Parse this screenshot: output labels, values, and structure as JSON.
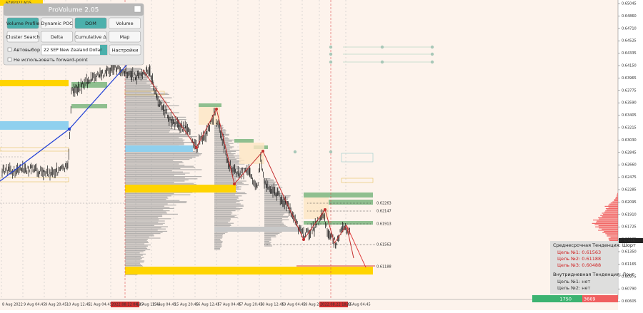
{
  "symbol": "6ZM2022,M15",
  "panel": {
    "title": "ProVolume 2.05",
    "buttons": [
      "Volume Profile",
      "Dynamic POC",
      "DOM",
      "Volume",
      "Cluster Search",
      "Delta",
      "Cumulative Δ",
      "Map"
    ],
    "auto_select": "Автовыбор",
    "instrument": "22 SEP New Zealand Dollar",
    "settings": "Настройки",
    "forward_point": "Не использовать forward-point"
  },
  "price_axis": [
    "0.65045",
    "0.64860",
    "0.64710",
    "0.64525",
    "0.64335",
    "0.64150",
    "0.63965",
    "0.63775",
    "0.63590",
    "0.63405",
    "0.63215",
    "0.63030",
    "0.62845",
    "0.62660",
    "0.62475",
    "0.62285",
    "0.62095",
    "0.61910",
    "0.61725",
    "0.61535",
    "0.61350",
    "0.61165",
    "0.60975",
    "0.60790",
    "0.60605"
  ],
  "current_price": "0.61635",
  "time_axis": [
    "8 Aug 2022",
    "9 Aug 04:45",
    "9 Aug 20:45",
    "10 Aug 12:45",
    "11 Aug 04:45",
    "2022.08.12 04:45",
    "12 Aug 12:45",
    "15 Aug 04:45",
    "15 Aug 20:45",
    "16 Aug 12:45",
    "17 Aug 04:45",
    "17 Aug 20:45",
    "18 Aug 12:45",
    "19 Aug 04:45",
    "19 Aug 20:45",
    "2022.08.22 18:45",
    "23 Aug 04:45"
  ],
  "level_labels": [
    "0.62263",
    "0.62147",
    "0.61913",
    "0.61563",
    "0.61188"
  ],
  "info": {
    "mid_trend": "Среднесрочная Тенденция: Шорт",
    "mid_targets": [
      "Цель №1: 0.61563",
      "Цель №2: 0.61188",
      "Цель №3: 0.60488"
    ],
    "intraday_trend": "Внутридневная Тенденция: Лонг",
    "intraday_targets": [
      "Цель №1: нет",
      "Цель №2: нет"
    ]
  },
  "bottom_bar": [
    "1750",
    "3669"
  ]
}
